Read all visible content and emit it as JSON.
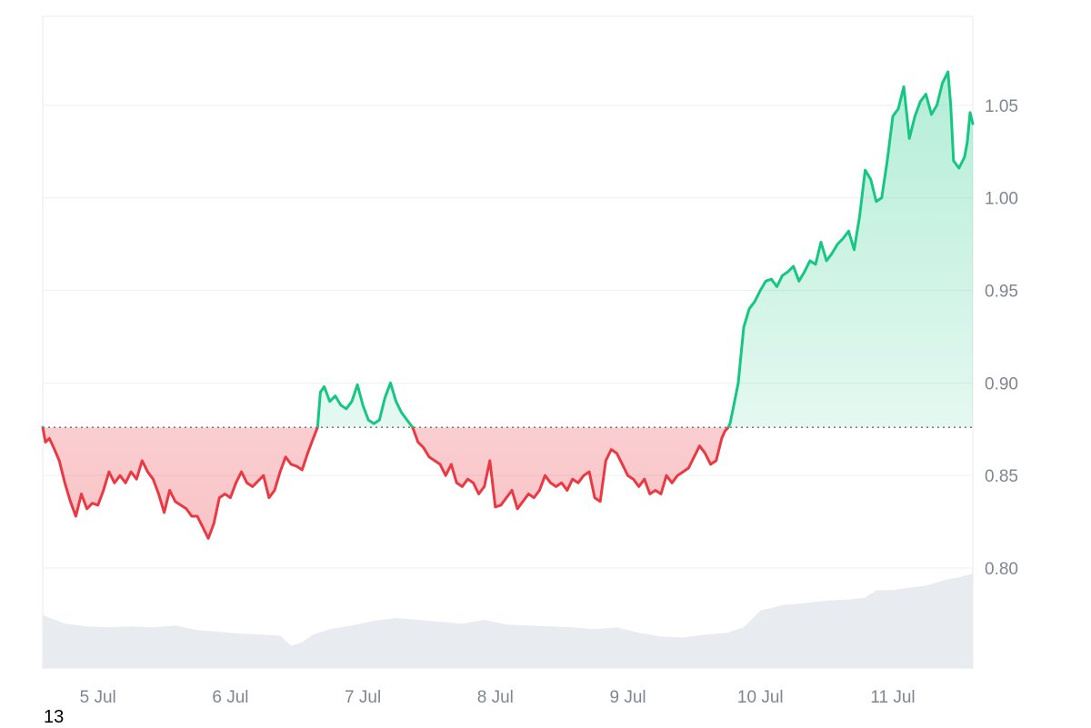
{
  "chart_data": {
    "type": "area",
    "xlabel": "",
    "ylabel": "",
    "x_ticks": [
      "5 Jul",
      "6 Jul",
      "7 Jul",
      "8 Jul",
      "9 Jul",
      "10 Jul",
      "11 Jul"
    ],
    "y_ticks": [
      "0.80",
      "0.85",
      "0.90",
      "0.95",
      "1.00",
      "1.05"
    ],
    "ylim": [
      0.746,
      1.098
    ],
    "x_range": [
      "4 Jul 14:00",
      "11 Jul 13:30"
    ],
    "x_unit": "hours since 4 Jul 00:00",
    "baseline": 0.876,
    "grid": true,
    "y_axis_position": "right",
    "series": [
      {
        "values": [
          [
            14.0,
            0.876
          ],
          [
            14.5,
            0.868
          ],
          [
            15.2,
            0.87
          ],
          [
            16.0,
            0.865
          ],
          [
            17.0,
            0.858
          ],
          [
            18.0,
            0.846
          ],
          [
            19.0,
            0.836
          ],
          [
            20.0,
            0.828
          ],
          [
            21.0,
            0.84
          ],
          [
            22.0,
            0.832
          ],
          [
            23.0,
            0.835
          ],
          [
            24.0,
            0.834
          ],
          [
            25.0,
            0.842
          ],
          [
            26.0,
            0.852
          ],
          [
            27.0,
            0.846
          ],
          [
            28.0,
            0.85
          ],
          [
            29.0,
            0.846
          ],
          [
            30.0,
            0.852
          ],
          [
            31.0,
            0.848
          ],
          [
            32.0,
            0.858
          ],
          [
            33.0,
            0.852
          ],
          [
            34.0,
            0.848
          ],
          [
            35.0,
            0.84
          ],
          [
            36.0,
            0.83
          ],
          [
            37.0,
            0.842
          ],
          [
            38.0,
            0.836
          ],
          [
            39.0,
            0.834
          ],
          [
            40.0,
            0.832
          ],
          [
            41.0,
            0.828
          ],
          [
            42.0,
            0.828
          ],
          [
            43.0,
            0.822
          ],
          [
            44.0,
            0.816
          ],
          [
            45.0,
            0.824
          ],
          [
            46.0,
            0.838
          ],
          [
            47.0,
            0.84
          ],
          [
            48.0,
            0.838
          ],
          [
            49.0,
            0.846
          ],
          [
            50.0,
            0.852
          ],
          [
            51.0,
            0.846
          ],
          [
            52.0,
            0.844
          ],
          [
            53.0,
            0.847
          ],
          [
            54.0,
            0.85
          ],
          [
            55.0,
            0.838
          ],
          [
            56.0,
            0.842
          ],
          [
            57.0,
            0.852
          ],
          [
            58.0,
            0.86
          ],
          [
            59.0,
            0.856
          ],
          [
            60.0,
            0.855
          ],
          [
            61.0,
            0.853
          ],
          [
            62.0,
            0.862
          ],
          [
            63.0,
            0.87
          ],
          [
            63.8,
            0.876
          ],
          [
            64.3,
            0.895
          ],
          [
            65.0,
            0.898
          ],
          [
            66.0,
            0.89
          ],
          [
            67.0,
            0.893
          ],
          [
            68.0,
            0.888
          ],
          [
            69.0,
            0.886
          ],
          [
            70.0,
            0.89
          ],
          [
            71.0,
            0.899
          ],
          [
            72.0,
            0.888
          ],
          [
            73.0,
            0.88
          ],
          [
            74.0,
            0.878
          ],
          [
            75.0,
            0.88
          ],
          [
            76.0,
            0.892
          ],
          [
            77.0,
            0.9
          ],
          [
            78.0,
            0.89
          ],
          [
            79.0,
            0.884
          ],
          [
            80.0,
            0.88
          ],
          [
            81.0,
            0.876
          ],
          [
            82.0,
            0.868
          ],
          [
            83.0,
            0.865
          ],
          [
            84.0,
            0.86
          ],
          [
            85.0,
            0.858
          ],
          [
            86.0,
            0.856
          ],
          [
            87.0,
            0.85
          ],
          [
            88.0,
            0.856
          ],
          [
            89.0,
            0.846
          ],
          [
            90.0,
            0.844
          ],
          [
            91.0,
            0.848
          ],
          [
            92.0,
            0.846
          ],
          [
            93.0,
            0.84
          ],
          [
            94.0,
            0.844
          ],
          [
            95.0,
            0.858
          ],
          [
            96.0,
            0.833
          ],
          [
            97.0,
            0.834
          ],
          [
            98.0,
            0.838
          ],
          [
            99.0,
            0.842
          ],
          [
            100.0,
            0.832
          ],
          [
            101.0,
            0.836
          ],
          [
            102.0,
            0.84
          ],
          [
            103.0,
            0.838
          ],
          [
            104.0,
            0.842
          ],
          [
            105.0,
            0.85
          ],
          [
            106.0,
            0.846
          ],
          [
            107.0,
            0.844
          ],
          [
            108.0,
            0.846
          ],
          [
            109.0,
            0.842
          ],
          [
            110.0,
            0.848
          ],
          [
            111.0,
            0.846
          ],
          [
            112.0,
            0.85
          ],
          [
            113.0,
            0.852
          ],
          [
            114.0,
            0.838
          ],
          [
            115.0,
            0.836
          ],
          [
            116.0,
            0.858
          ],
          [
            117.0,
            0.864
          ],
          [
            118.0,
            0.862
          ],
          [
            119.0,
            0.856
          ],
          [
            120.0,
            0.85
          ],
          [
            121.0,
            0.848
          ],
          [
            122.0,
            0.844
          ],
          [
            123.0,
            0.848
          ],
          [
            124.0,
            0.84
          ],
          [
            125.0,
            0.842
          ],
          [
            126.0,
            0.84
          ],
          [
            127.0,
            0.85
          ],
          [
            128.0,
            0.846
          ],
          [
            129.0,
            0.85
          ],
          [
            130.0,
            0.852
          ],
          [
            131.0,
            0.854
          ],
          [
            132.0,
            0.86
          ],
          [
            133.0,
            0.866
          ],
          [
            134.0,
            0.862
          ],
          [
            135.0,
            0.856
          ],
          [
            136.0,
            0.858
          ],
          [
            137.0,
            0.87
          ],
          [
            137.6,
            0.874
          ],
          [
            138.2,
            0.876
          ],
          [
            138.5,
            0.878
          ],
          [
            139.0,
            0.885
          ],
          [
            140.0,
            0.9
          ],
          [
            140.5,
            0.915
          ],
          [
            141.0,
            0.93
          ],
          [
            142.0,
            0.94
          ],
          [
            143.0,
            0.944
          ],
          [
            144.0,
            0.95
          ],
          [
            145.0,
            0.955
          ],
          [
            146.0,
            0.956
          ],
          [
            147.0,
            0.952
          ],
          [
            148.0,
            0.958
          ],
          [
            149.0,
            0.96
          ],
          [
            150.0,
            0.963
          ],
          [
            151.0,
            0.955
          ],
          [
            152.0,
            0.96
          ],
          [
            153.0,
            0.966
          ],
          [
            154.0,
            0.964
          ],
          [
            155.0,
            0.976
          ],
          [
            156.0,
            0.966
          ],
          [
            157.0,
            0.97
          ],
          [
            158.0,
            0.975
          ],
          [
            159.0,
            0.978
          ],
          [
            160.0,
            0.982
          ],
          [
            161.0,
            0.972
          ],
          [
            162.0,
            0.99
          ],
          [
            163.0,
            1.015
          ],
          [
            164.0,
            1.01
          ],
          [
            165.0,
            0.998
          ],
          [
            166.0,
            1.0
          ],
          [
            167.0,
            1.02
          ],
          [
            168.0,
            1.044
          ],
          [
            169.0,
            1.048
          ],
          [
            170.0,
            1.06
          ],
          [
            171.0,
            1.032
          ],
          [
            172.0,
            1.044
          ],
          [
            173.0,
            1.052
          ],
          [
            174.0,
            1.056
          ],
          [
            175.0,
            1.045
          ],
          [
            176.0,
            1.05
          ],
          [
            177.0,
            1.062
          ],
          [
            178.0,
            1.068
          ],
          [
            178.5,
            1.05
          ],
          [
            179.0,
            1.02
          ],
          [
            180.0,
            1.016
          ],
          [
            181.0,
            1.022
          ],
          [
            181.5,
            1.03
          ],
          [
            182.0,
            1.046
          ],
          [
            182.5,
            1.04
          ]
        ]
      },
      {
        "values": [
          [
            14.0,
            0.7745
          ],
          [
            18.0,
            0.77
          ],
          [
            22.0,
            0.7685
          ],
          [
            26.0,
            0.768
          ],
          [
            30.0,
            0.7685
          ],
          [
            34.0,
            0.768
          ],
          [
            38.0,
            0.769
          ],
          [
            42.0,
            0.7665
          ],
          [
            46.0,
            0.7655
          ],
          [
            50.0,
            0.7645
          ],
          [
            54.0,
            0.764
          ],
          [
            57.0,
            0.7635
          ],
          [
            59.0,
            0.758
          ],
          [
            61.0,
            0.76
          ],
          [
            63.0,
            0.764
          ],
          [
            66.0,
            0.767
          ],
          [
            70.0,
            0.769
          ],
          [
            74.0,
            0.7715
          ],
          [
            78.0,
            0.773
          ],
          [
            82.0,
            0.772
          ],
          [
            86.0,
            0.771
          ],
          [
            90.0,
            0.77
          ],
          [
            94.0,
            0.772
          ],
          [
            98.0,
            0.7695
          ],
          [
            102.0,
            0.769
          ],
          [
            106.0,
            0.7685
          ],
          [
            110.0,
            0.768
          ],
          [
            114.0,
            0.767
          ],
          [
            118.0,
            0.768
          ],
          [
            122.0,
            0.765
          ],
          [
            126.0,
            0.763
          ],
          [
            130.0,
            0.7625
          ],
          [
            134.0,
            0.764
          ],
          [
            138.0,
            0.765
          ],
          [
            141.0,
            0.768
          ],
          [
            144.0,
            0.777
          ],
          [
            148.0,
            0.78
          ],
          [
            152.0,
            0.781
          ],
          [
            156.0,
            0.7825
          ],
          [
            160.0,
            0.783
          ],
          [
            163.0,
            0.784
          ],
          [
            165.0,
            0.788
          ],
          [
            168.0,
            0.788
          ],
          [
            170.0,
            0.789
          ],
          [
            174.0,
            0.7905
          ],
          [
            178.0,
            0.794
          ],
          [
            180.0,
            0.795
          ],
          [
            182.5,
            0.797
          ]
        ]
      }
    ],
    "colors": {
      "up_line": "#16c784",
      "down_line": "#ea3943",
      "grid": "#eef0f3",
      "volume": "#e8ebef",
      "tick_text": "#7f8693"
    }
  },
  "corner_label": "13"
}
